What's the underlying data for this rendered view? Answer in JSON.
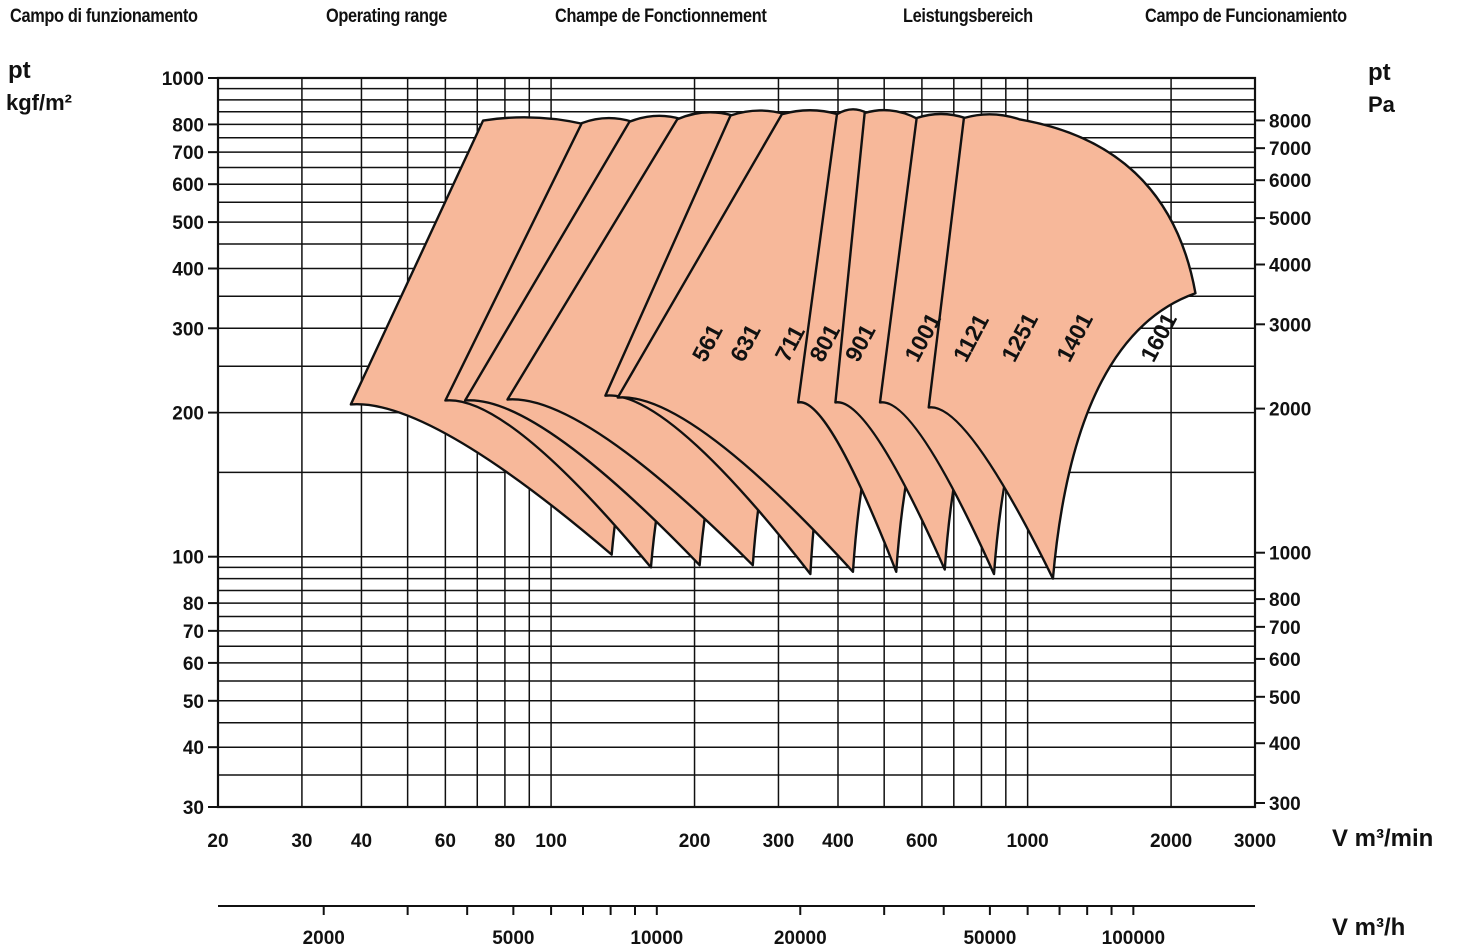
{
  "header": {
    "titles": [
      "Campo di funzionamento",
      "Operating range",
      "Champe de Fonctionnement",
      "Leistungsbereich",
      "Campo de Funcionamiento"
    ]
  },
  "chart_data": {
    "type": "area",
    "title": "Operating range",
    "x_scale": "log",
    "y_scale": "log",
    "grid": true,
    "xlim": [
      20,
      3000
    ],
    "ylim": [
      30,
      1000
    ],
    "left_axis": {
      "label_symbol": "pt",
      "label_unit": "kgf/m²",
      "ticks": [
        30,
        40,
        50,
        60,
        70,
        80,
        100,
        200,
        300,
        400,
        500,
        600,
        700,
        800,
        1000
      ]
    },
    "right_axis": {
      "label_symbol": "pt",
      "label_unit": "Pa",
      "ticks": [
        300,
        400,
        500,
        600,
        700,
        800,
        1000,
        2000,
        3000,
        4000,
        5000,
        6000,
        7000,
        8000
      ]
    },
    "bottom_axis": {
      "label": "V m³/min",
      "ticks": [
        20,
        30,
        40,
        60,
        80,
        100,
        200,
        300,
        400,
        600,
        1000,
        2000,
        3000
      ]
    },
    "secondary_bottom_axis": {
      "label": "V m³/h",
      "ticks": [
        2000,
        5000,
        10000,
        20000,
        50000,
        100000
      ]
    },
    "series": [
      {
        "name": "561",
        "region": [
          [
            38,
            208
          ],
          [
            72,
            815
          ],
          [
            118,
            800
          ],
          [
            258,
            365
          ],
          [
            134,
            101
          ]
        ]
      },
      {
        "name": "631",
        "region": [
          [
            60,
            212
          ],
          [
            116,
            805
          ],
          [
            148,
            810
          ],
          [
            310,
            365
          ],
          [
            162,
            95
          ]
        ]
      },
      {
        "name": "711",
        "region": [
          [
            66,
            212
          ],
          [
            146,
            810
          ],
          [
            188,
            820
          ],
          [
            385,
            365
          ],
          [
            205,
            96
          ]
        ]
      },
      {
        "name": "801",
        "region": [
          [
            81,
            213
          ],
          [
            184,
            820
          ],
          [
            240,
            835
          ],
          [
            455,
            365
          ],
          [
            265,
            96
          ]
        ]
      },
      {
        "name": "901",
        "region": [
          [
            130,
            217
          ],
          [
            238,
            835
          ],
          [
            310,
            840
          ],
          [
            540,
            365
          ],
          [
            350,
            92
          ]
        ]
      },
      {
        "name": "1001",
        "region": [
          [
            138,
            215
          ],
          [
            305,
            840
          ],
          [
            400,
            840
          ],
          [
            720,
            365
          ],
          [
            430,
            93
          ]
        ]
      },
      {
        "name": "1121",
        "region": [
          [
            330,
            210
          ],
          [
            398,
            840
          ],
          [
            460,
            845
          ],
          [
            910,
            365
          ],
          [
            530,
            93
          ]
        ]
      },
      {
        "name": "1251",
        "region": [
          [
            395,
            210
          ],
          [
            455,
            845
          ],
          [
            590,
            820
          ],
          [
            1150,
            365
          ],
          [
            670,
            94
          ]
        ]
      },
      {
        "name": "1401",
        "region": [
          [
            490,
            210
          ],
          [
            585,
            825
          ],
          [
            740,
            825
          ],
          [
            1500,
            360
          ],
          [
            850,
            92
          ]
        ]
      },
      {
        "name": "1601",
        "region": [
          [
            620,
            205
          ],
          [
            735,
            825
          ],
          [
            960,
            820
          ],
          [
            2250,
            355
          ],
          [
            1130,
            90
          ]
        ]
      }
    ]
  }
}
